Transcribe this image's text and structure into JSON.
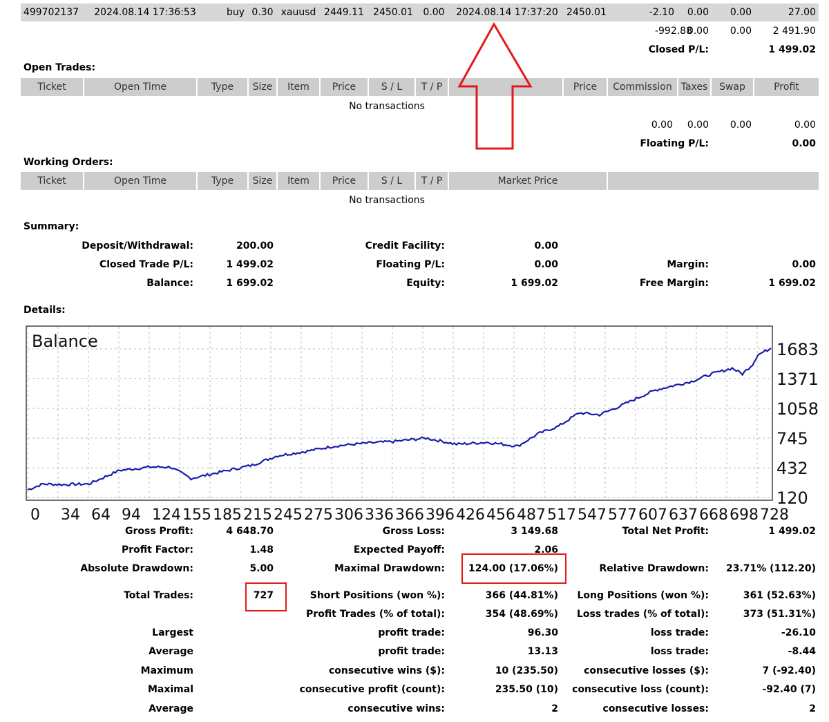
{
  "top_row": [
    "499702137",
    "2024.08.14 17:36:53",
    "buy",
    "0.30",
    "xauusd",
    "2449.11",
    "2450.01",
    "0.00",
    "2024.08.14 17:37:20",
    "2450.01",
    "-2.10",
    "0.00",
    "0.00",
    "27.00"
  ],
  "closed_totals": {
    "commission": "-992.88",
    "taxes": "0.00",
    "swap": "0.00",
    "profit": "2 491.90",
    "pl_label": "Closed P/L:",
    "pl_value": "1 499.02"
  },
  "open_trades": {
    "title": "Open Trades:",
    "headers": [
      "Ticket",
      "Open Time",
      "Type",
      "Size",
      "Item",
      "Price",
      "S / L",
      "T / P",
      "",
      "Price",
      "Commission",
      "Taxes",
      "Swap",
      "Profit"
    ],
    "empty": "No transactions",
    "totals": {
      "commission": "0.00",
      "taxes": "0.00",
      "swap": "0.00",
      "profit": "0.00",
      "pl_label": "Floating P/L:",
      "pl_value": "0.00"
    }
  },
  "working_orders": {
    "title": "Working Orders:",
    "headers": [
      "Ticket",
      "Open Time",
      "Type",
      "Size",
      "Item",
      "Price",
      "S / L",
      "T / P",
      "Market Price",
      ""
    ],
    "empty": "No transactions"
  },
  "summary": {
    "title": "Summary:",
    "deposit_label": "Deposit/Withdrawal:",
    "deposit_value": "200.00",
    "credit_label": "Credit Facility:",
    "credit_value": "0.00",
    "closed_label": "Closed Trade P/L:",
    "closed_value": "1 499.02",
    "floating_label": "Floating P/L:",
    "floating_value": "0.00",
    "margin_label": "Margin:",
    "margin_value": "0.00",
    "balance_label": "Balance:",
    "balance_value": "1 699.02",
    "equity_label": "Equity:",
    "equity_value": "1 699.02",
    "free_label": "Free Margin:",
    "free_value": "1 699.02"
  },
  "details_title": "Details:",
  "chart_data": {
    "type": "line",
    "title": "Balance",
    "y_ticks": [
      "1683",
      "1371",
      "1058",
      "745",
      "432",
      "120"
    ],
    "x_ticks": [
      "0",
      "34",
      "64",
      "94",
      "124",
      "155",
      "185",
      "215",
      "245",
      "275",
      "306",
      "336",
      "366",
      "396",
      "426",
      "456",
      "487",
      "517",
      "547",
      "577",
      "607",
      "637",
      "668",
      "698",
      "728"
    ],
    "ylim": [
      120,
      1683
    ],
    "xlim": [
      0,
      728
    ],
    "grid": true,
    "series": [
      {
        "x": [
          0,
          15,
          35,
          60,
          90,
          120,
          140,
          160,
          190,
          220,
          245,
          270,
          300,
          330,
          360,
          390,
          420,
          450,
          480,
          500,
          520,
          540,
          560,
          580,
          600,
          615,
          630,
          650,
          670,
          690,
          700,
          710,
          715,
          728
        ],
        "values": [
          200,
          262,
          255,
          262,
          405,
          440,
          440,
          320,
          390,
          460,
          560,
          600,
          660,
          690,
          710,
          745,
          680,
          700,
          660,
          790,
          870,
          1010,
          990,
          1080,
          1180,
          1250,
          1290,
          1340,
          1420,
          1480,
          1420,
          1520,
          1620,
          1690
        ]
      }
    ],
    "line_color": "#1a1aaa"
  },
  "stats": {
    "gross_profit_label": "Gross Profit:",
    "gross_profit": "4 648.70",
    "gross_loss_label": "Gross Loss:",
    "gross_loss": "3 149.68",
    "net_profit_label": "Total Net Profit:",
    "net_profit": "1 499.02",
    "profit_factor_label": "Profit Factor:",
    "profit_factor": "1.48",
    "expected_payoff_label": "Expected Payoff:",
    "expected_payoff": "2.06",
    "abs_dd_label": "Absolute Drawdown:",
    "abs_dd": "5.00",
    "max_dd_label": "Maximal Drawdown:",
    "max_dd": "124.00 (17.06%)",
    "rel_dd_label": "Relative Drawdown:",
    "rel_dd": "23.71% (112.20)",
    "total_trades_label": "Total Trades:",
    "total_trades": "727",
    "short_label": "Short Positions (won %):",
    "short": "366 (44.81%)",
    "long_label": "Long Positions (won %):",
    "long": "361 (52.63%)",
    "profit_trades_label": "Profit Trades (% of total):",
    "profit_trades": "354 (48.69%)",
    "loss_trades_label": "Loss trades (% of total):",
    "loss_trades": "373 (51.31%)",
    "rows": [
      {
        "group": "Largest",
        "pl": "profit trade:",
        "pv": "96.30",
        "ll": "loss trade:",
        "lv": "-26.10"
      },
      {
        "group": "Average",
        "pl": "profit trade:",
        "pv": "13.13",
        "ll": "loss trade:",
        "lv": "-8.44"
      },
      {
        "group": "Maximum",
        "pl": "consecutive wins ($):",
        "pv": "10 (235.50)",
        "ll": "consecutive losses ($):",
        "lv": "7 (-92.40)"
      },
      {
        "group": "Maximal",
        "pl": "consecutive profit (count):",
        "pv": "235.50 (10)",
        "ll": "consecutive loss (count):",
        "lv": "-92.40 (7)"
      },
      {
        "group": "Average",
        "pl": "consecutive wins:",
        "pv": "2",
        "ll": "consecutive losses:",
        "lv": "2"
      }
    ]
  },
  "colors": {
    "header_gray": "#cdcdcd",
    "row_gray": "#d7d7d7",
    "annotation_red": "#e31818",
    "line_blue": "#1a1aaa"
  }
}
